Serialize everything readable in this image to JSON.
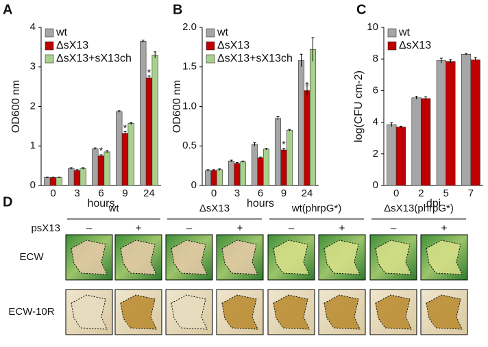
{
  "chart_data": [
    {
      "type": "bar",
      "panel_label": "A",
      "ylabel": "OD600 nm",
      "xlabel": "hours",
      "categories": [
        "0",
        "3",
        "6",
        "9",
        "24"
      ],
      "series": [
        {
          "name": "wt",
          "color": "#a6a6a6",
          "values": [
            0.2,
            0.43,
            0.93,
            1.87,
            3.65
          ],
          "errors": [
            0.01,
            0.02,
            0.02,
            0.02,
            0.03
          ]
        },
        {
          "name": "ΔsX13",
          "color": "#c00000",
          "values": [
            0.2,
            0.38,
            0.75,
            1.32,
            2.72
          ],
          "errors": [
            0.01,
            0.02,
            0.03,
            0.04,
            0.05
          ],
          "significance": [
            null,
            null,
            "*",
            "*",
            "*"
          ]
        },
        {
          "name": "ΔsX13+sX13ch",
          "color": "#a9d18e",
          "values": [
            0.2,
            0.43,
            0.85,
            1.57,
            3.3
          ],
          "errors": [
            0.01,
            0.02,
            0.03,
            0.03,
            0.08
          ]
        }
      ],
      "ylim": [
        0,
        4
      ],
      "yticks": [
        0,
        1,
        2,
        3,
        4
      ]
    },
    {
      "type": "bar",
      "panel_label": "B",
      "ylabel": "OD600 nm",
      "xlabel": "hours",
      "categories": [
        "0",
        "3",
        "6",
        "9",
        "24"
      ],
      "series": [
        {
          "name": "wt",
          "color": "#a6a6a6",
          "values": [
            0.19,
            0.31,
            0.52,
            0.85,
            1.58
          ],
          "errors": [
            0.01,
            0.01,
            0.02,
            0.02,
            0.08
          ]
        },
        {
          "name": "ΔsX13",
          "color": "#c00000",
          "values": [
            0.19,
            0.28,
            0.35,
            0.45,
            1.2
          ],
          "errors": [
            0.01,
            0.01,
            0.01,
            0.02,
            0.06
          ],
          "significance": [
            null,
            null,
            null,
            "*",
            "*"
          ]
        },
        {
          "name": "ΔsX13+sX13ch",
          "color": "#a9d18e",
          "values": [
            0.2,
            0.3,
            0.46,
            0.7,
            1.72
          ],
          "errors": [
            0.01,
            0.01,
            0.01,
            0.01,
            0.15
          ]
        }
      ],
      "ylim": [
        0,
        2
      ],
      "yticks": [
        0,
        0.5,
        {
          "value": 1,
          "label": "1.0"
        },
        1.5,
        {
          "value": 2,
          "label": "2.0"
        }
      ]
    },
    {
      "type": "bar",
      "panel_label": "C",
      "ylabel": "log(CFU cm-2)",
      "xlabel": "dpi",
      "categories": [
        "0",
        "2",
        "5",
        "7"
      ],
      "series": [
        {
          "name": "wt",
          "color": "#a6a6a6",
          "values": [
            3.85,
            5.55,
            7.9,
            8.3
          ],
          "errors": [
            0.12,
            0.1,
            0.15,
            0.05
          ]
        },
        {
          "name": "ΔsX13",
          "color": "#c00000",
          "values": [
            3.7,
            5.5,
            7.85,
            7.95
          ],
          "errors": [
            0.05,
            0.1,
            0.12,
            0.15
          ]
        }
      ],
      "ylim": [
        0,
        10
      ],
      "yticks": [
        0,
        2,
        4,
        6,
        8,
        10
      ]
    }
  ],
  "panel_d": {
    "panel_label": "D",
    "groups": [
      "wt",
      "ΔsX13",
      "wt(phrpG*)",
      "ΔsX13(phrpG*)"
    ],
    "row_header": "psX13",
    "signs": [
      "–",
      "+",
      "–",
      "+",
      "–",
      "+",
      "–",
      "+"
    ],
    "rows": [
      "ECW",
      "ECW-10R"
    ]
  }
}
